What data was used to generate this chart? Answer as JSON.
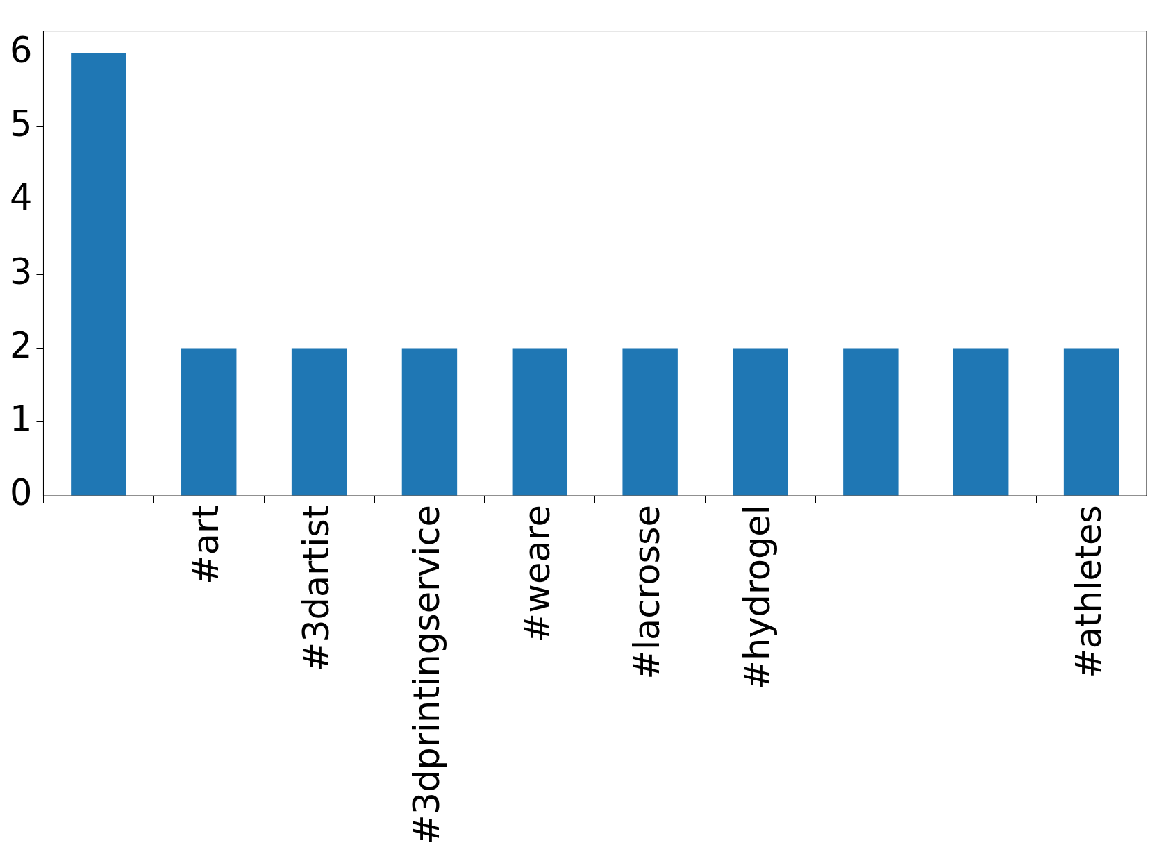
{
  "chart_data": {
    "type": "bar",
    "categories": [
      null,
      "#art",
      "#3dartist",
      "#3dprintingservice",
      "#weare",
      "#lacrosse",
      "#hydrogel",
      null,
      null,
      "#athletes"
    ],
    "values": [
      6,
      2,
      2,
      2,
      2,
      2,
      2,
      2,
      2,
      2
    ],
    "color": "#1f77b4",
    "ylim": [
      0,
      6.3
    ],
    "yticks": [
      0,
      1,
      2,
      3,
      4,
      5,
      6
    ],
    "grid": false,
    "legend": false
  }
}
